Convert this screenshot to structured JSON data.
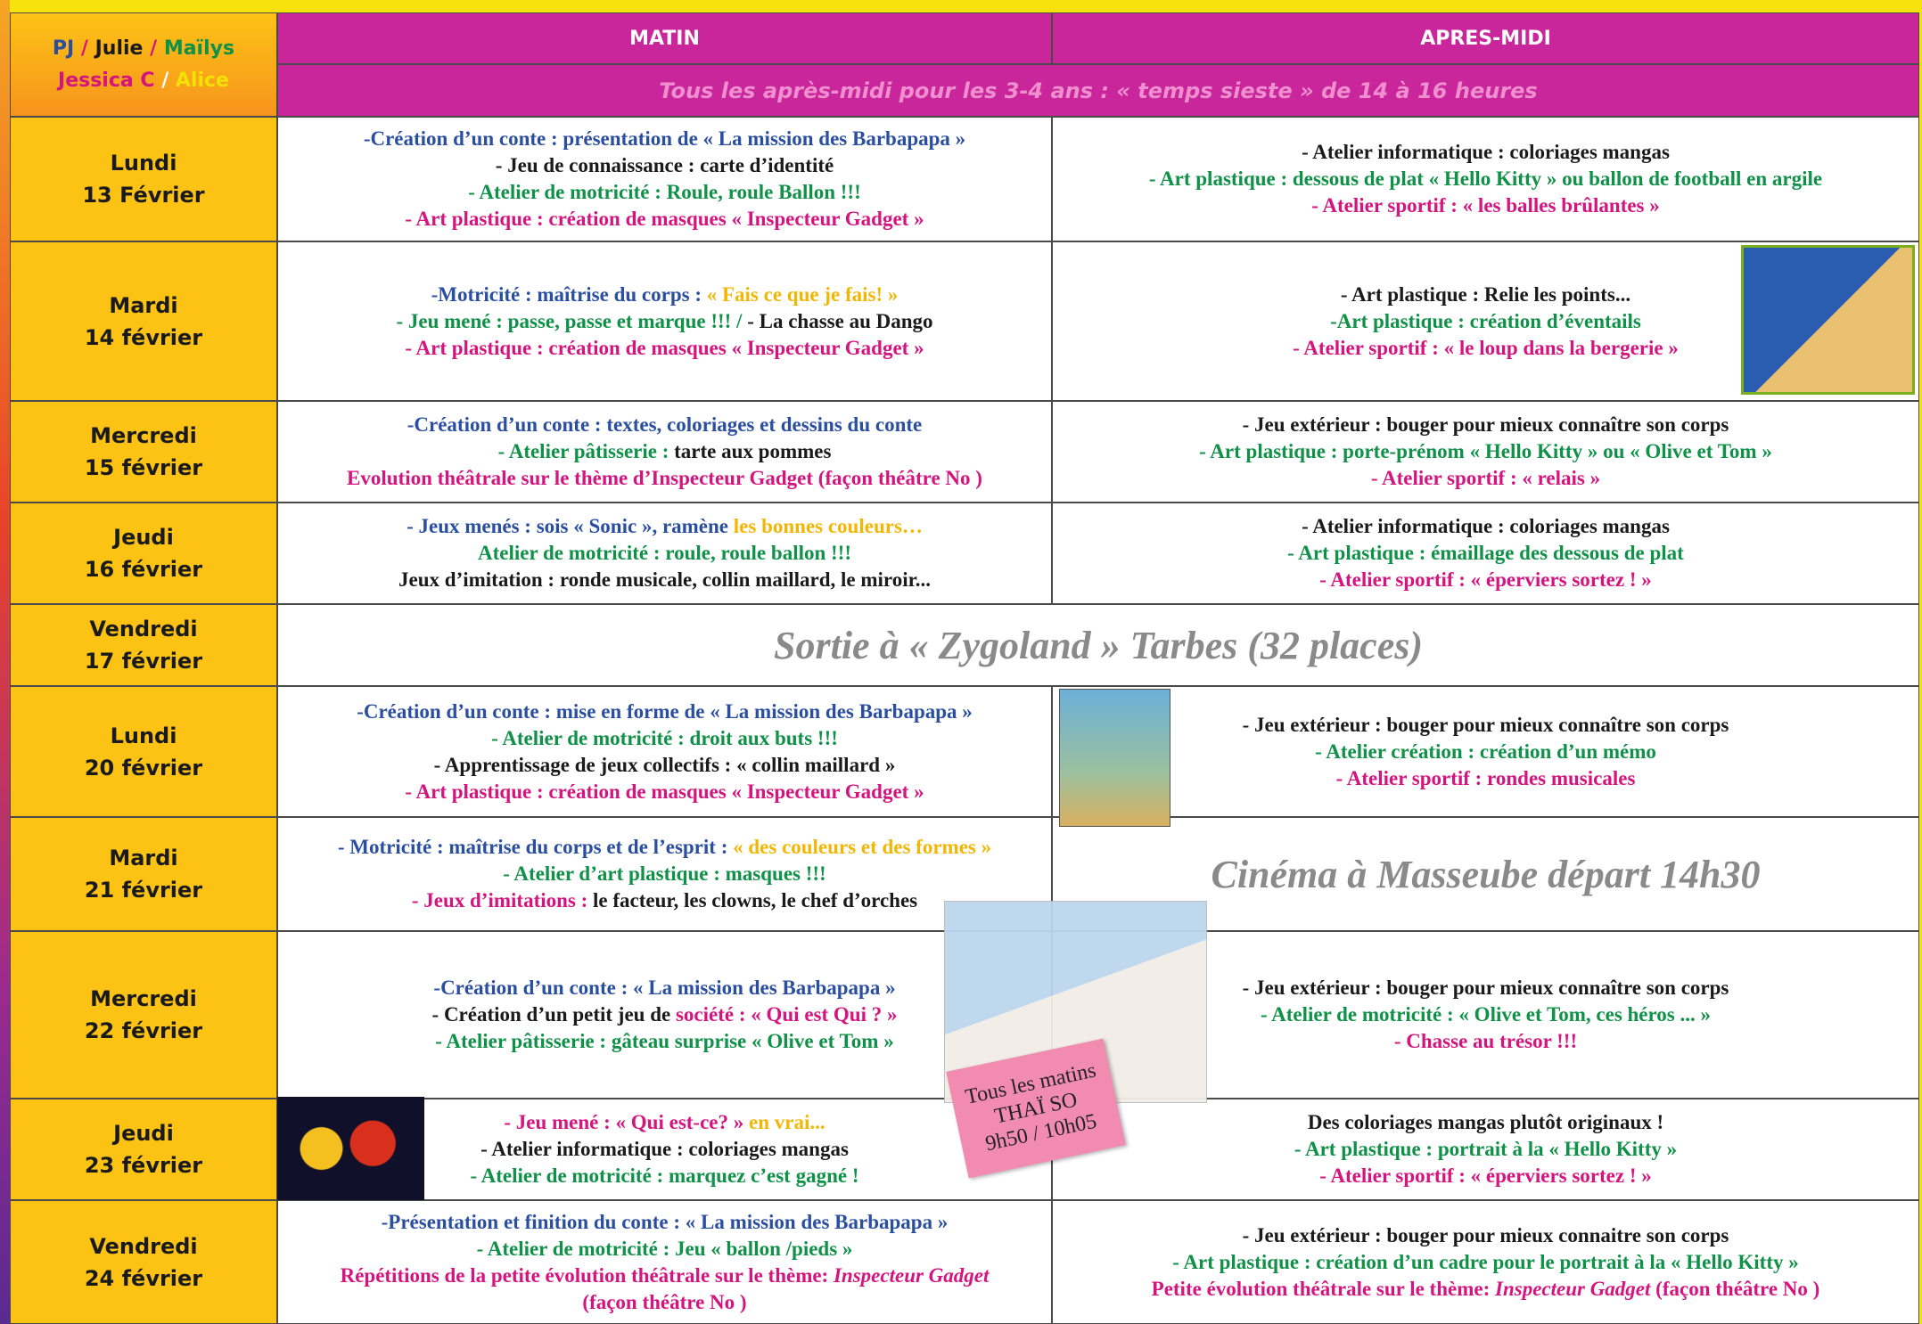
{
  "header": {
    "staff": [
      [
        {
          "text": "PJ",
          "color": "#2b4fa0"
        },
        {
          "text": " / ",
          "color": "#d4147f"
        },
        {
          "text": "Julie",
          "color": "#1a1a1a"
        },
        {
          "text": " / ",
          "color": "#d4147f"
        },
        {
          "text": "Maïlys",
          "color": "#0f9147"
        }
      ],
      [
        {
          "text": "Jessica C",
          "color": "#d4147f"
        },
        {
          "text": " / ",
          "color": "#ffffff"
        },
        {
          "text": "Alice",
          "color": "#f2e205"
        }
      ]
    ],
    "matin": "MATIN",
    "apres_midi": "APRES-MIDI",
    "notice": "Tous les après-midi pour les 3-4 ans : « temps sieste » de 14 à 16 heures"
  },
  "rows": [
    {
      "day": "Lundi",
      "date": "13 Février",
      "matin": [
        [
          {
            "text": "-Création d’un conte : présentation de « La mission des Barbapapa »",
            "color": "#2b4fa0"
          }
        ],
        [
          {
            "text": "- Jeu de connaissance : carte d’identité",
            "color": "#1a1a1a"
          }
        ],
        [
          {
            "text": "- Atelier de motricité : Roule, roule Ballon !!!",
            "color": "#0f9147"
          }
        ],
        [
          {
            "text": "- Art plastique : création de masques « Inspecteur Gadget »",
            "color": "#d4147f"
          }
        ]
      ],
      "apres_midi": [
        [
          {
            "text": "- Atelier informatique : coloriages mangas",
            "color": "#1a1a1a"
          }
        ],
        [
          {
            "text": "- Art plastique : dessous de  plat « Hello Kitty » ou  ballon de  football en argile",
            "color": "#0f9147"
          }
        ],
        [
          {
            "text": "- Atelier sportif :  « les balles brûlantes »",
            "color": "#d4147f"
          }
        ]
      ]
    },
    {
      "day": "Mardi",
      "date": "14 février",
      "matin": [
        [
          {
            "text": "-Motricité : maîtrise du corps : ",
            "color": "#2b4fa0"
          },
          {
            "text": "« Fais ce que je fais! »",
            "color": "#f2b705"
          }
        ],
        [
          {
            "text": "- Jeu mené : passe,  passe et marque !!! / ",
            "color": "#0f9147"
          },
          {
            "text": "- La chasse au Dango",
            "color": "#1a1a1a"
          }
        ],
        [
          {
            "text": "- Art plastique : création de masques « Inspecteur Gadget »",
            "color": "#d4147f"
          }
        ]
      ],
      "apres_midi": [
        [
          {
            "text": "- Art plastique : Relie les points...",
            "color": "#1a1a1a"
          }
        ],
        [
          {
            "text": "-Art plastique : création d’éventails",
            "color": "#0f9147"
          }
        ],
        [
          {
            "text": "- Atelier sportif :  « le loup dans la bergerie »",
            "color": "#d4147f"
          }
        ]
      ]
    },
    {
      "day": "Mercredi",
      "date": "15 février",
      "matin": [
        [
          {
            "text": "-Création d’un conte : textes, coloriages et dessins du conte",
            "color": "#2b4fa0"
          }
        ],
        [
          {
            "text": "- Atelier pâtisserie : ",
            "color": "#0f9147"
          },
          {
            "text": "tarte aux pommes",
            "color": "#1a1a1a"
          }
        ],
        [
          {
            "text": "Evolution théâtrale sur le thème d’Inspecteur Gadget (façon théâtre No )",
            "color": "#d4147f"
          }
        ]
      ],
      "apres_midi": [
        [
          {
            "text": "- Jeu extérieur : bouger pour mieux connaître son corps",
            "color": "#1a1a1a"
          }
        ],
        [
          {
            "text": "- Art plastique : porte-prénom « Hello Kitty » ou « Olive et Tom »",
            "color": "#0f9147"
          }
        ],
        [
          {
            "text": "- Atelier sportif :  « relais »",
            "color": "#d4147f"
          }
        ]
      ]
    },
    {
      "day": "Jeudi",
      "date": "16 février",
      "matin": [
        [
          {
            "text": "- Jeux menés : sois « Sonic »,  ramène ",
            "color": "#2b4fa0"
          },
          {
            "text": "les bonnes couleurs…",
            "color": "#f2b705"
          }
        ],
        [
          {
            "text": "Atelier de motricité : roule, roule ballon !!!",
            "color": "#0f9147"
          }
        ],
        [
          {
            "text": "Jeux d’imitation : ronde musicale, collin maillard, le miroir...",
            "color": "#1a1a1a"
          }
        ]
      ],
      "apres_midi": [
        [
          {
            "text": "- Atelier informatique : coloriages mangas",
            "color": "#1a1a1a"
          }
        ],
        [
          {
            "text": "- Art plastique : émaillage des dessous de plat",
            "color": "#0f9147"
          }
        ],
        [
          {
            "text": "- Atelier sportif :  « éperviers sortez ! »",
            "color": "#d4147f"
          }
        ]
      ]
    },
    {
      "day": "Vendredi",
      "date": "17 février",
      "full": "Sortie à « Zygoland » Tarbes (32 places)"
    },
    {
      "day": "Lundi",
      "date": "20 février",
      "matin": [
        [
          {
            "text": "-Création d’un conte : mise en forme de « La mission des Barbapapa »",
            "color": "#2b4fa0"
          }
        ],
        [
          {
            "text": "- Atelier de motricité : droit aux buts !!!",
            "color": "#0f9147"
          }
        ],
        [
          {
            "text": "- Apprentissage de jeux collectifs : « collin maillard »",
            "color": "#1a1a1a"
          }
        ],
        [
          {
            "text": "- Art plastique : création de masques « Inspecteur Gadget »",
            "color": "#d4147f"
          }
        ]
      ],
      "apres_midi": [
        [
          {
            "text": "- Jeu extérieur : bouger pour mieux connaître son corps",
            "color": "#1a1a1a"
          }
        ],
        [
          {
            "text": "- Atelier création : création d’un mémo",
            "color": "#0f9147"
          }
        ],
        [
          {
            "text": "- Atelier sportif : rondes musicales",
            "color": "#d4147f"
          }
        ]
      ]
    },
    {
      "day": "Mardi",
      "date": "21 février",
      "matin": [
        [
          {
            "text": "- Motricité : maîtrise du corps et de l’esprit : ",
            "color": "#2b4fa0"
          },
          {
            "text": "« des couleurs et des formes »",
            "color": "#f2b705"
          }
        ],
        [
          {
            "text": "- Atelier d’art plastique : masques !!!",
            "color": "#0f9147"
          }
        ],
        [
          {
            "text": "- Jeux d’imitations : ",
            "color": "#d4147f"
          },
          {
            "text": "le facteur,  les clowns,  le chef d’orches",
            "color": "#1a1a1a"
          }
        ]
      ],
      "apres_banner": "Cinéma à Masseube départ 14h30"
    },
    {
      "day": "Mercredi",
      "date": "22 février",
      "matin": [
        [
          {
            "text": "-Création d’un conte : « La mission des Barbapapa »",
            "color": "#2b4fa0"
          }
        ],
        [
          {
            "text": "- Création d’un petit jeu de ",
            "color": "#1a1a1a"
          },
          {
            "text": "société : « Qui est Qui ? »",
            "color": "#d4147f"
          }
        ],
        [
          {
            "text": "- Atelier pâtisserie : gâteau surprise « Olive et Tom »",
            "color": "#0f9147"
          }
        ]
      ],
      "apres_midi": [
        [
          {
            "text": "- Jeu extérieur : bouger pour mieux connaître son corps",
            "color": "#1a1a1a"
          }
        ],
        [
          {
            "text": "- Atelier de motricité : « Olive et Tom, ces héros ... »",
            "color": "#0f9147"
          }
        ],
        [
          {
            "text": "- Chasse au trésor !!!",
            "color": "#d4147f"
          }
        ]
      ]
    },
    {
      "day": "Jeudi",
      "date": "23 février",
      "matin": [
        [
          {
            "text": "- Jeu mené : « Qui est-ce? » ",
            "color": "#d4147f"
          },
          {
            "text": "en vrai...",
            "color": "#f2b705"
          }
        ],
        [
          {
            "text": "- Atelier informatique : coloriages mangas",
            "color": "#1a1a1a"
          }
        ],
        [
          {
            "text": "- Atelier de motricité : marquez c’est gagné !",
            "color": "#0f9147"
          }
        ]
      ],
      "apres_midi": [
        [
          {
            "text": "Des coloriages mangas plutôt originaux !",
            "color": "#1a1a1a"
          }
        ],
        [
          {
            "text": "- Art plastique : portrait à la « Hello Kitty »",
            "color": "#0f9147"
          }
        ],
        [
          {
            "text": "- Atelier sportif : « éperviers sortez ! »",
            "color": "#d4147f"
          }
        ]
      ]
    },
    {
      "day": "Vendredi",
      "date": "24 février",
      "matin": [
        [
          {
            "text": "-Présentation et finition du conte : « La mission des Barbapapa »",
            "color": "#2b4fa0"
          }
        ],
        [
          {
            "text": "- Atelier de motricité : Jeu « ballon /pieds »",
            "color": "#0f9147"
          }
        ],
        [
          {
            "text": "Répétitions de la petite évolution théâtrale sur le thème: ",
            "color": "#d4147f"
          },
          {
            "text": "Inspecteur Gadget",
            "color": "#d4147f",
            "italic": true
          }
        ],
        [
          {
            "text": "(façon théâtre No )",
            "color": "#d4147f"
          }
        ]
      ],
      "apres_midi": [
        [
          {
            "text": "- Jeu extérieur :  bouger pour mieux connaitre son corps",
            "color": "#1a1a1a"
          }
        ],
        [
          {
            "text": "- Art plastique : création d’un cadre pour le portrait à la « Hello Kitty »",
            "color": "#0f9147"
          }
        ],
        [
          {
            "text": "Petite évolution théâtrale sur le thème: ",
            "color": "#d4147f"
          },
          {
            "text": "Inspecteur Gadget",
            "color": "#d4147f",
            "italic": true
          },
          {
            "text": " (façon théâtre No )",
            "color": "#d4147f"
          }
        ]
      ]
    }
  ],
  "note": [
    "Tous les matins",
    "THAÏ SO",
    "9h50 / 10h05"
  ]
}
